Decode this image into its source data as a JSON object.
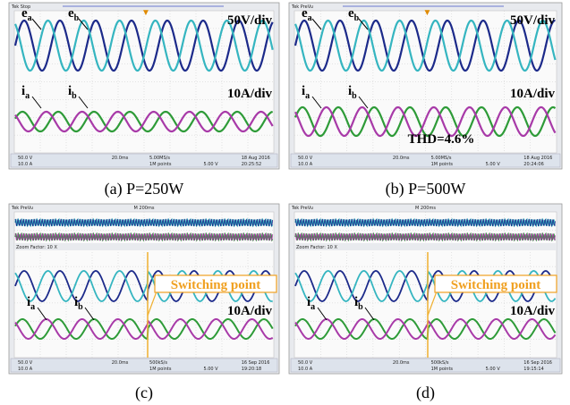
{
  "panels": [
    {
      "header": "Tek Stop",
      "caption": "(a) P=250W",
      "labels": [
        {
          "main": "e",
          "sub": "a"
        },
        {
          "main": "e",
          "sub": "b"
        },
        {
          "main": "i",
          "sub": "a"
        },
        {
          "main": "i",
          "sub": "b"
        }
      ],
      "scales": [
        "50V/div",
        "10A/div"
      ],
      "status": [
        "50.0 V",
        "10.0 A",
        "20.0ms",
        "5.00MS/s",
        "1M points",
        "5.00 V",
        "18 Aug 2016",
        "20:25:52"
      ]
    },
    {
      "header": "Tek PreVu",
      "caption": "(b) P=500W",
      "labels": [
        {
          "main": "e",
          "sub": "a"
        },
        {
          "main": "e",
          "sub": "b"
        },
        {
          "main": "i",
          "sub": "a"
        },
        {
          "main": "i",
          "sub": "b"
        }
      ],
      "scales": [
        "50V/div",
        "10A/div"
      ],
      "note": "THD=4.6%",
      "status": [
        "50.0 V",
        "10.0 A",
        "20.0ms",
        "5.00MS/s",
        "1M points",
        "5.00 V",
        "18 Aug 2016",
        "20:24:06"
      ]
    },
    {
      "header": "Tek PreVu",
      "caption": "(c)",
      "timebase": "M 200ms",
      "zoom": "Zoom Factor: 10 X",
      "labels": [
        {
          "main": "i",
          "sub": "a"
        },
        {
          "main": "i",
          "sub": "b"
        }
      ],
      "scales": [
        "10A/div"
      ],
      "switch": "Switching point",
      "status": [
        "50.0 V",
        "10.0 A",
        "20.0ms",
        "500kS/s",
        "1M points",
        "5.00 V",
        "16 Sep 2016",
        "19:20:18"
      ]
    },
    {
      "header": "Tek PreVu",
      "caption": "(d)",
      "timebase": "M 200ms",
      "zoom": "Zoom Factor: 10 X",
      "labels": [
        {
          "main": "i",
          "sub": "a"
        },
        {
          "main": "i",
          "sub": "b"
        }
      ],
      "scales": [
        "10A/div"
      ],
      "switch": "Switching point",
      "status": [
        "50.0 V",
        "10.0 A",
        "20.0ms",
        "500kS/s",
        "1M points",
        "5.00 V",
        "16 Sep 2016",
        "19:15:14"
      ]
    }
  ]
}
